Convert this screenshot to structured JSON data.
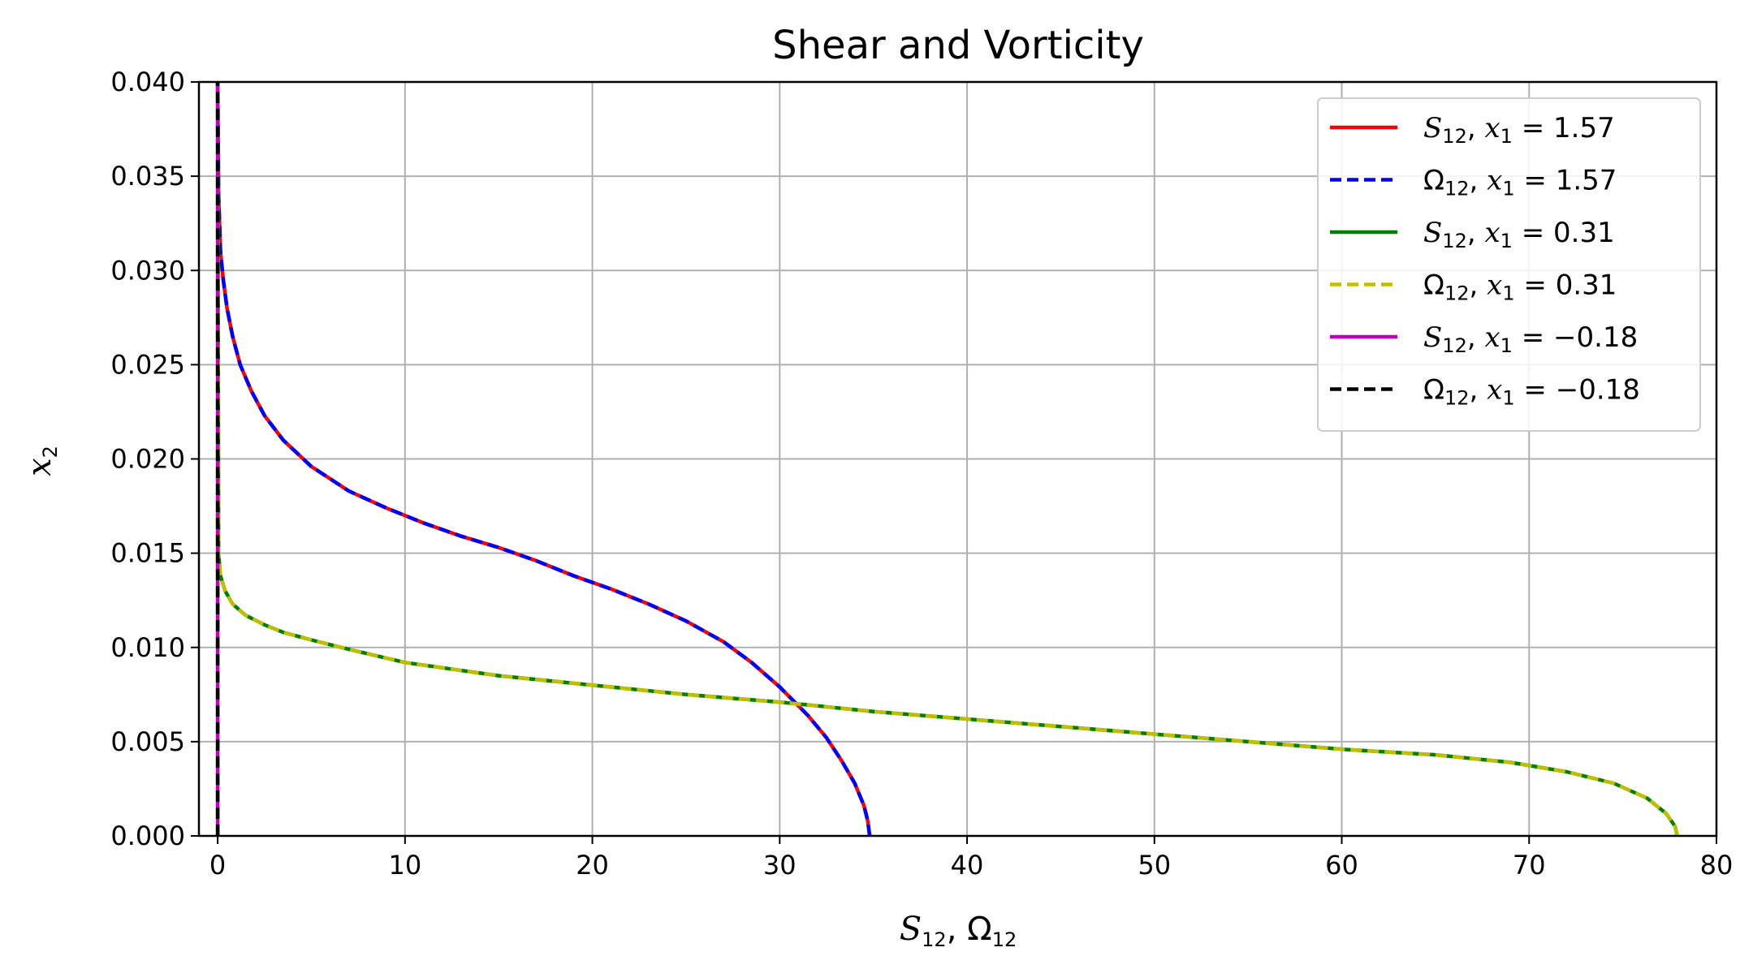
{
  "chart_data": {
    "type": "line",
    "title": "Shear and Vorticity",
    "xlabel": "S12, Ω12",
    "ylabel": "x2",
    "xlim": [
      -1,
      80
    ],
    "ylim": [
      0,
      0.04
    ],
    "xticks": [
      0,
      10,
      20,
      30,
      40,
      50,
      60,
      70,
      80
    ],
    "xtick_labels": [
      "0",
      "10",
      "20",
      "30",
      "40",
      "50",
      "60",
      "70",
      "80"
    ],
    "yticks": [
      0,
      0.005,
      0.01,
      0.015,
      0.02,
      0.025,
      0.03,
      0.035,
      0.04
    ],
    "ytick_labels": [
      "0.000",
      "0.005",
      "0.010",
      "0.015",
      "0.020",
      "0.025",
      "0.030",
      "0.035",
      "0.040"
    ],
    "grid": true,
    "legend_position": "top-right",
    "series": [
      {
        "name": "S12, x1 = 1.57",
        "legend": {
          "var": "S",
          "var_sub": "12",
          "coord": "x",
          "coord_sub": "1",
          "value": "1.57"
        },
        "color": "#ff0000",
        "dash": "solid",
        "x": [
          34.8,
          34.7,
          34.5,
          34.0,
          33.3,
          32.5,
          31.5,
          30.0,
          28.5,
          27.0,
          25.0,
          23.0,
          21.0,
          19.0,
          17.0,
          15.0,
          13.0,
          11.0,
          9.0,
          7.0,
          5.0,
          3.5,
          2.5,
          1.8,
          1.2,
          0.8,
          0.5,
          0.3,
          0.15,
          0.05,
          0.0
        ],
        "y": [
          0.0,
          0.0008,
          0.0016,
          0.0028,
          0.004,
          0.0052,
          0.0064,
          0.0079,
          0.0092,
          0.0103,
          0.0114,
          0.0123,
          0.0131,
          0.0138,
          0.0146,
          0.0153,
          0.0159,
          0.0166,
          0.0174,
          0.0183,
          0.0196,
          0.021,
          0.0223,
          0.0236,
          0.025,
          0.0265,
          0.028,
          0.0295,
          0.031,
          0.034,
          0.04
        ]
      },
      {
        "name": "Ω12, x1 = 1.57",
        "legend": {
          "var": "Ω",
          "var_sub": "12",
          "coord": "x",
          "coord_sub": "1",
          "value": "1.57"
        },
        "color": "#0000ff",
        "dash": "dashed",
        "x": [
          34.8,
          34.7,
          34.5,
          34.0,
          33.3,
          32.5,
          31.5,
          30.0,
          28.5,
          27.0,
          25.0,
          23.0,
          21.0,
          19.0,
          17.0,
          15.0,
          13.0,
          11.0,
          9.0,
          7.0,
          5.0,
          3.5,
          2.5,
          1.8,
          1.2,
          0.8,
          0.5,
          0.3,
          0.15,
          0.05,
          0.0
        ],
        "y": [
          0.0,
          0.0008,
          0.0016,
          0.0028,
          0.004,
          0.0052,
          0.0064,
          0.0079,
          0.0092,
          0.0103,
          0.0114,
          0.0123,
          0.0131,
          0.0138,
          0.0146,
          0.0153,
          0.0159,
          0.0166,
          0.0174,
          0.0183,
          0.0196,
          0.021,
          0.0223,
          0.0236,
          0.025,
          0.0265,
          0.028,
          0.0295,
          0.031,
          0.034,
          0.04
        ]
      },
      {
        "name": "S12, x1 = 0.31",
        "legend": {
          "var": "S",
          "var_sub": "12",
          "coord": "x",
          "coord_sub": "1",
          "value": "0.31"
        },
        "color": "#008000",
        "dash": "solid",
        "x": [
          77.9,
          77.8,
          77.3,
          76.3,
          74.5,
          72.0,
          69.0,
          65.0,
          60.0,
          55.0,
          50.0,
          45.0,
          40.0,
          35.0,
          30.0,
          25.0,
          20.0,
          15.0,
          10.0,
          7.0,
          5.0,
          3.5,
          2.5,
          1.5,
          0.8,
          0.4,
          0.15,
          0.05,
          0.0
        ],
        "y": [
          0.0,
          0.0005,
          0.0012,
          0.002,
          0.0028,
          0.0034,
          0.0039,
          0.0043,
          0.0046,
          0.005,
          0.0054,
          0.0058,
          0.0062,
          0.0066,
          0.0071,
          0.0075,
          0.008,
          0.0085,
          0.0092,
          0.0099,
          0.0104,
          0.0108,
          0.0112,
          0.0117,
          0.0123,
          0.013,
          0.0138,
          0.015,
          0.04
        ]
      },
      {
        "name": "Ω12, x1 = 0.31",
        "legend": {
          "var": "Ω",
          "var_sub": "12",
          "coord": "x",
          "coord_sub": "1",
          "value": "0.31"
        },
        "color": "#bfbf00",
        "dash": "dashed",
        "x": [
          77.9,
          77.8,
          77.3,
          76.3,
          74.5,
          72.0,
          69.0,
          65.0,
          60.0,
          55.0,
          50.0,
          45.0,
          40.0,
          35.0,
          30.0,
          25.0,
          20.0,
          15.0,
          10.0,
          7.0,
          5.0,
          3.5,
          2.5,
          1.5,
          0.8,
          0.4,
          0.15,
          0.05,
          0.0
        ],
        "y": [
          0.0,
          0.0005,
          0.0012,
          0.002,
          0.0028,
          0.0034,
          0.0039,
          0.0043,
          0.0046,
          0.005,
          0.0054,
          0.0058,
          0.0062,
          0.0066,
          0.0071,
          0.0075,
          0.008,
          0.0085,
          0.0092,
          0.0099,
          0.0104,
          0.0108,
          0.0112,
          0.0117,
          0.0123,
          0.013,
          0.0138,
          0.015,
          0.04
        ]
      },
      {
        "name": "S12, x1 = −0.18",
        "legend": {
          "var": "S",
          "var_sub": "12",
          "coord": "x",
          "coord_sub": "1",
          "value": "−0.18"
        },
        "color": "#bf00bf",
        "dash": "solid",
        "x": [
          0.0,
          0.0
        ],
        "y": [
          0.0,
          0.04
        ]
      },
      {
        "name": "Ω12, x1 = −0.18",
        "legend": {
          "var": "Ω",
          "var_sub": "12",
          "coord": "x",
          "coord_sub": "1",
          "value": "−0.18"
        },
        "color": "#000000",
        "dash": "dashed",
        "x": [
          0.0,
          0.0
        ],
        "y": [
          0.0,
          0.04
        ]
      }
    ]
  }
}
